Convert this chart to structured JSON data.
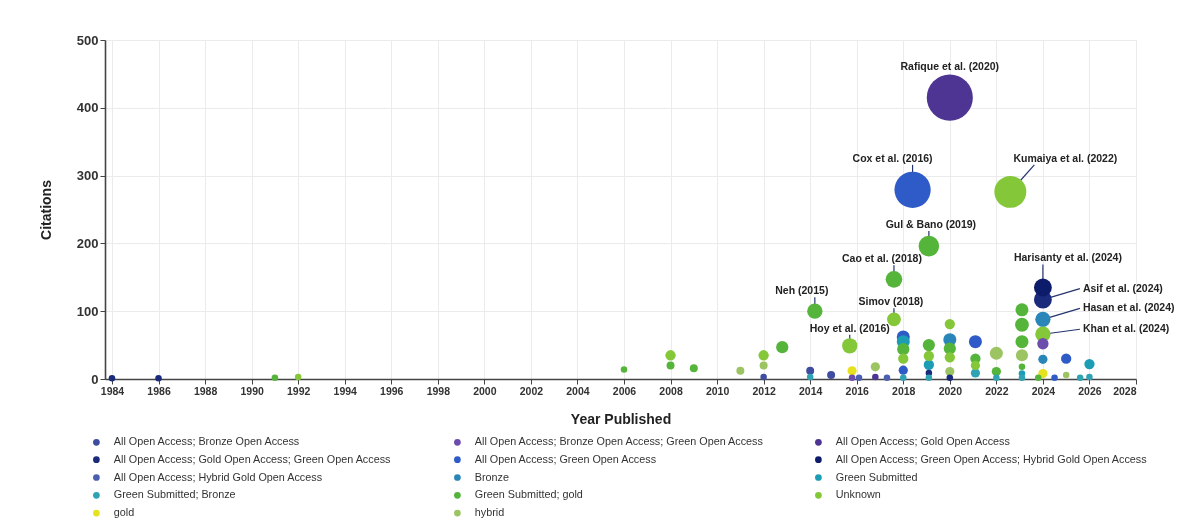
{
  "chart_data": {
    "type": "bubble",
    "xlabel": "Year Published",
    "ylabel": "Citations",
    "xlim": [
      1983.7,
      2028
    ],
    "xticks": [
      1984,
      1986,
      1988,
      1990,
      1992,
      1994,
      1996,
      1998,
      2000,
      2002,
      2004,
      2006,
      2008,
      2010,
      2012,
      2014,
      2016,
      2018,
      2020,
      2022,
      2024,
      2026,
      2028
    ],
    "ylim": [
      0,
      500
    ],
    "yticks": [
      0,
      100,
      200,
      300,
      400,
      500
    ],
    "grid": true,
    "legend": "bottom",
    "marker": "circle",
    "series": [
      {
        "name": "All Open Access; Bronze Open Access",
        "color": "#3e4d9f",
        "x": [
          2014,
          2014.9,
          2012
        ],
        "values": [
          12,
          6,
          3
        ],
        "sizes": [
          0.03,
          0.03,
          0.02
        ]
      },
      {
        "name": "All Open Access; Bronze Open Access; Green Open Access",
        "color": "#6c4cad",
        "x": [
          2015.8,
          2024
        ],
        "values": [
          2,
          52
        ],
        "sizes": [
          0.02,
          0.06
        ]
      },
      {
        "name": "All Open Access; Gold Open Access",
        "color": "#4e3493",
        "x": [
          2020,
          2016.8
        ],
        "values": [
          415,
          3
        ],
        "sizes": [
          1,
          0.02
        ]
      },
      {
        "name": "All Open Access; Gold Open Access; Green Open Access",
        "color": "#1b2b7c",
        "x": [
          2024,
          2019.1,
          1984,
          1986,
          2020
        ],
        "values": [
          117,
          9,
          1,
          1,
          2
        ],
        "sizes": [
          0.15,
          0.02,
          0.02,
          0.02,
          0.02
        ]
      },
      {
        "name": "All Open Access; Green Open Access",
        "color": "#2f5bc8",
        "x": [
          2018.4,
          2018,
          2021.1,
          2025,
          2018,
          2024.5
        ],
        "values": [
          279,
          62,
          55,
          30,
          13,
          2
        ],
        "sizes": [
          0.62,
          0.08,
          0.08,
          0.05,
          0.04,
          0.02
        ]
      },
      {
        "name": "All Open Access; Green Open Access; Hybrid Gold Open Access",
        "color": "#0d1c6a",
        "x": [
          2024
        ],
        "values": [
          135
        ],
        "sizes": [
          0.15
        ]
      },
      {
        "name": "All Open Access; Hybrid Gold Open Access",
        "color": "#4b5fb1",
        "x": [
          2016.1,
          2017.3
        ],
        "values": [
          2,
          2
        ],
        "sizes": [
          0.02,
          0.02
        ]
      },
      {
        "name": "Bronze",
        "color": "#2a86b9",
        "x": [
          2024,
          2020,
          2024
        ],
        "values": [
          88,
          58,
          29
        ],
        "sizes": [
          0.11,
          0.08,
          0.04
        ]
      },
      {
        "name": "Green Submitted",
        "color": "#1c9db5",
        "x": [
          2018,
          2019.1,
          2026,
          2023.1
        ],
        "values": [
          55,
          21,
          22,
          8
        ],
        "sizes": [
          0.08,
          0.05,
          0.05,
          0.02
        ]
      },
      {
        "name": "Green Submitted; Bronze",
        "color": "#2fa3b3",
        "x": [
          2014,
          2018,
          2019.1,
          2021.1,
          2022,
          2025.6,
          2026,
          2023.1
        ],
        "values": [
          3,
          2,
          2,
          9,
          2,
          2,
          3,
          2
        ],
        "sizes": [
          0.02,
          0.02,
          0.02,
          0.04,
          0.02,
          0.02,
          0.02,
          0.02
        ]
      },
      {
        "name": "Green Submitted; gold",
        "color": "#55b43a",
        "x": [
          2014.2,
          2017.6,
          2019.1,
          2012.8,
          2006,
          2008,
          2009,
          2018,
          2019.1,
          2020,
          2021.1,
          2022,
          2023.1,
          2023.1,
          2023.1,
          2023.1,
          2023.8,
          1991
        ],
        "values": [
          100,
          147,
          196,
          47,
          14,
          20,
          16,
          44,
          50,
          45,
          30,
          11,
          102,
          80,
          55,
          18,
          2,
          2
        ],
        "sizes": [
          0.11,
          0.13,
          0.2,
          0.07,
          0.02,
          0.03,
          0.03,
          0.07,
          0.07,
          0.07,
          0.05,
          0.04,
          0.08,
          0.09,
          0.08,
          0.02,
          0.02,
          0.02
        ]
      },
      {
        "name": "Unknown",
        "color": "#84c83a",
        "x": [
          2022.6,
          2015.7,
          2017.6,
          2024,
          2012,
          2008,
          2018,
          2019.1,
          2020,
          2020,
          2021.1,
          1992
        ],
        "values": [
          276,
          49,
          88,
          66,
          35,
          35,
          30,
          34,
          81,
          32,
          20,
          3
        ],
        "sizes": [
          0.48,
          0.11,
          0.09,
          0.11,
          0.05,
          0.05,
          0.05,
          0.05,
          0.05,
          0.05,
          0.04,
          0.02
        ]
      },
      {
        "name": "gold",
        "color": "#e6e21d",
        "x": [
          2015.8,
          2024
        ],
        "values": [
          12,
          8
        ],
        "sizes": [
          0.04,
          0.04
        ]
      },
      {
        "name": "hybrid",
        "color": "#9dc462",
        "x": [
          2011,
          2012,
          2016.8,
          2025,
          2023.1,
          2022,
          2020
        ],
        "values": [
          12,
          20,
          18,
          6,
          35,
          38,
          11
        ],
        "sizes": [
          0.03,
          0.03,
          0.04,
          0.02,
          0.07,
          0.08,
          0.04
        ]
      }
    ],
    "annotations": [
      {
        "text": "Rafique et al. (2020)",
        "x": 2020,
        "y": 415
      },
      {
        "text": "Cox et al. (2016)",
        "x": 2018.4,
        "y": 279
      },
      {
        "text": "Kumaiya et al. (2022)",
        "x": 2022.6,
        "y": 276
      },
      {
        "text": "Gul & Bano (2019)",
        "x": 2019.1,
        "y": 196
      },
      {
        "text": "Cao et al. (2018)",
        "x": 2017.6,
        "y": 147
      },
      {
        "text": "Neh (2015)",
        "x": 2014.2,
        "y": 100
      },
      {
        "text": "Hoy et al. (2016)",
        "x": 2015.7,
        "y": 49
      },
      {
        "text": "Simov (2018)",
        "x": 2017.6,
        "y": 88
      },
      {
        "text": "Harisanty et al. (2024)",
        "x": 2024,
        "y": 135
      },
      {
        "text": "Asif et al. (2024)",
        "x": 2024,
        "y": 117
      },
      {
        "text": "Hasan et al. (2024)",
        "x": 2024,
        "y": 88
      },
      {
        "text": "Khan et al. (2024)",
        "x": 2024,
        "y": 66
      }
    ]
  }
}
